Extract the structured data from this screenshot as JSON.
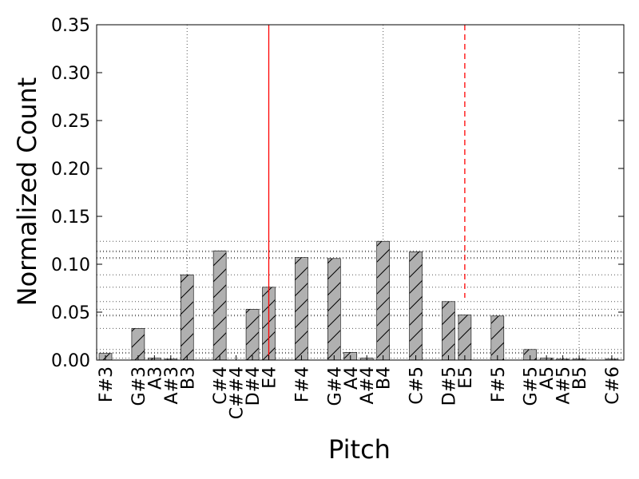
{
  "chart_data": {
    "type": "bar",
    "xlabel": "Pitch",
    "ylabel": "Normalized Count",
    "ylim": [
      0,
      0.35
    ],
    "yticks": [
      "0.00",
      "0.05",
      "0.10",
      "0.15",
      "0.20",
      "0.25",
      "0.30",
      "0.35"
    ],
    "xlim": [
      54,
      85
    ],
    "bars": [
      {
        "midi": 54,
        "value": 0.007
      },
      {
        "midi": 56,
        "value": 0.033
      },
      {
        "midi": 57,
        "value": 0.002
      },
      {
        "midi": 58,
        "value": 0.001
      },
      {
        "midi": 59,
        "value": 0.089
      },
      {
        "midi": 61,
        "value": 0.114
      },
      {
        "midi": 63,
        "value": 0.053
      },
      {
        "midi": 64,
        "value": 0.076
      },
      {
        "midi": 66,
        "value": 0.107
      },
      {
        "midi": 68,
        "value": 0.106
      },
      {
        "midi": 69,
        "value": 0.008
      },
      {
        "midi": 70,
        "value": 0.002
      },
      {
        "midi": 71,
        "value": 0.124
      },
      {
        "midi": 73,
        "value": 0.113
      },
      {
        "midi": 75,
        "value": 0.061
      },
      {
        "midi": 76,
        "value": 0.047
      },
      {
        "midi": 78,
        "value": 0.046
      },
      {
        "midi": 80,
        "value": 0.011
      },
      {
        "midi": 81,
        "value": 0.002
      },
      {
        "midi": 82,
        "value": 0.001
      },
      {
        "midi": 83,
        "value": 0.001
      },
      {
        "midi": 85,
        "value": 0.001
      }
    ],
    "xtick_labels": [
      {
        "midi": 54,
        "label": "F#3"
      },
      {
        "midi": 56,
        "label": "G#3"
      },
      {
        "midi": 57,
        "label": "A3"
      },
      {
        "midi": 58,
        "label": "A#3"
      },
      {
        "midi": 59,
        "label": "B3"
      },
      {
        "midi": 61,
        "label": "C#4"
      },
      {
        "midi": 62,
        "label": "C##4"
      },
      {
        "midi": 63,
        "label": "D#4"
      },
      {
        "midi": 64,
        "label": "E4"
      },
      {
        "midi": 66,
        "label": "F#4"
      },
      {
        "midi": 68,
        "label": "G#4"
      },
      {
        "midi": 69,
        "label": "A4"
      },
      {
        "midi": 70,
        "label": "A#4"
      },
      {
        "midi": 71,
        "label": "B4"
      },
      {
        "midi": 73,
        "label": "C#5"
      },
      {
        "midi": 75,
        "label": "D#5"
      },
      {
        "midi": 76,
        "label": "E5"
      },
      {
        "midi": 78,
        "label": "F#5"
      },
      {
        "midi": 80,
        "label": "G#5"
      },
      {
        "midi": 81,
        "label": "A5"
      },
      {
        "midi": 82,
        "label": "A#5"
      },
      {
        "midi": 83,
        "label": "B5"
      },
      {
        "midi": 85,
        "label": "C#6"
      }
    ],
    "vertical_gridlines_midi": [
      59,
      71,
      83
    ],
    "horizontal_reference_lines": [
      0.124,
      0.114,
      0.113,
      0.107,
      0.106,
      0.089,
      0.076,
      0.061,
      0.053,
      0.047,
      0.046,
      0.033,
      0.011,
      0.008,
      0.007,
      0.002
    ],
    "reference_lines": [
      {
        "midi": 64,
        "style": "solid",
        "color": "#ff0000"
      },
      {
        "midi": 76,
        "style": "dashed",
        "color": "#ff0000",
        "ymax": 0.065
      }
    ],
    "bar_fill": "#b0b0b0",
    "bar_hatch": "/",
    "grid": true
  }
}
